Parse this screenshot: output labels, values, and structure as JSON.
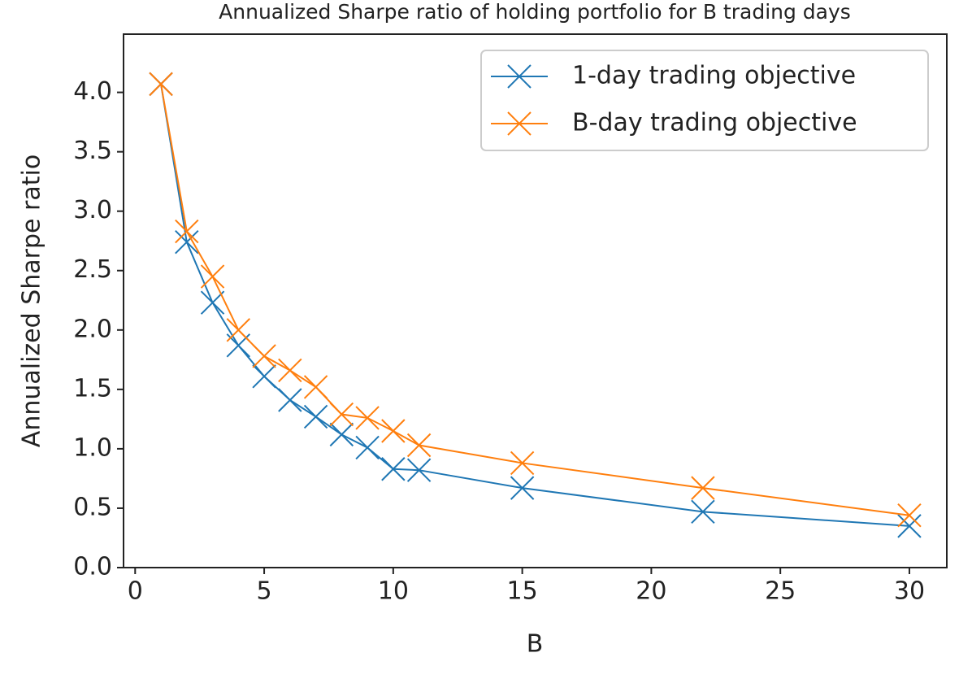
{
  "chart_data": {
    "type": "line",
    "title": "Annualized Sharpe ratio of holding portfolio for B trading days",
    "xlabel": "B",
    "ylabel": "Annualized Sharpe ratio",
    "x": [
      1,
      2,
      3,
      4,
      5,
      6,
      7,
      8,
      9,
      10,
      11,
      15,
      22,
      30
    ],
    "series": [
      {
        "name": "1-day trading objective",
        "color": "#1f77b4",
        "values": [
          4.07,
          2.74,
          2.23,
          1.87,
          1.61,
          1.41,
          1.27,
          1.12,
          1.01,
          0.83,
          0.82,
          0.67,
          0.47,
          0.35
        ]
      },
      {
        "name": "B-day trading objective",
        "color": "#ff7f0e",
        "values": [
          4.07,
          2.83,
          2.45,
          2.0,
          1.78,
          1.66,
          1.52,
          1.29,
          1.26,
          1.15,
          1.03,
          0.88,
          0.67,
          0.44
        ]
      }
    ],
    "xlim": [
      -0.45,
      31.45
    ],
    "ylim": [
      0,
      4.49
    ],
    "xticks": [
      0,
      5,
      10,
      15,
      20,
      25,
      30
    ],
    "yticks": [
      {
        "value": 0,
        "label": "0.0"
      },
      0.5,
      {
        "value": 1,
        "label": "1.0"
      },
      1.5,
      {
        "value": 2,
        "label": "2.0"
      },
      2.5,
      {
        "value": 3,
        "label": "3.0"
      },
      3.5,
      {
        "value": 4,
        "label": "4.0"
      }
    ],
    "legend": "upper right",
    "grid": false
  }
}
